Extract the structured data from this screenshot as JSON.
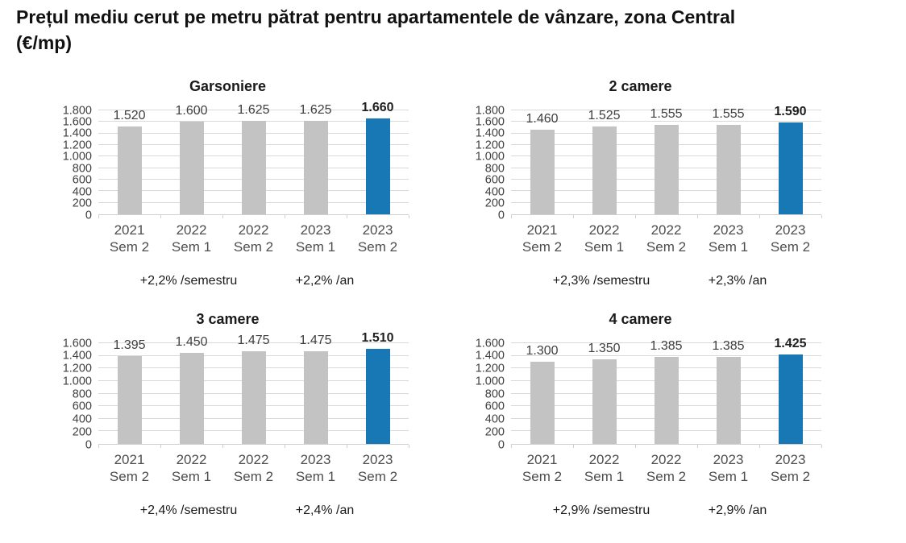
{
  "header": {
    "title_line1": "Prețul mediu cerut pe metru pătrat pentru apartamentele de vânzare, zona Central",
    "title_line2": "(€/mp)",
    "full_title": "Prețul mediu cerut pe metru pătrat pentru apartamentele de vânzare, zona Central (€/mp)"
  },
  "colors": {
    "bar": "#c3c3c3",
    "highlight_bar": "#1878b5",
    "gridline": "#d9d9d9",
    "axis_line": "#cfcfcf",
    "text_dark": "#1a1a1a",
    "text_gray": "#404040"
  },
  "chart_data": [
    {
      "type": "bar",
      "title": "Garsoniere",
      "categories": [
        [
          "2021",
          "Sem 2"
        ],
        [
          "2022",
          "Sem 1"
        ],
        [
          "2022",
          "Sem 2"
        ],
        [
          "2023",
          "Sem 1"
        ],
        [
          "2023",
          "Sem 2"
        ]
      ],
      "values": [
        1520,
        1600,
        1625,
        1625,
        1660
      ],
      "value_labels": [
        "1.520",
        "1.600",
        "1.625",
        "1.625",
        "1.660"
      ],
      "ylim": [
        0,
        1800
      ],
      "yticks": [
        "1.800",
        "1.600",
        "1.400",
        "1.200",
        "1.000",
        "800",
        "600",
        "400",
        "200",
        "0"
      ],
      "highlight_index": 4,
      "grid": true,
      "legend": "none",
      "annotations": [
        "+2,2% /semestru",
        "+2,2% /an"
      ]
    },
    {
      "type": "bar",
      "title": "2 camere",
      "categories": [
        [
          "2021",
          "Sem 2"
        ],
        [
          "2022",
          "Sem 1"
        ],
        [
          "2022",
          "Sem 2"
        ],
        [
          "2023",
          "Sem 1"
        ],
        [
          "2023",
          "Sem 2"
        ]
      ],
      "values": [
        1460,
        1525,
        1555,
        1555,
        1590
      ],
      "value_labels": [
        "1.460",
        "1.525",
        "1.555",
        "1.555",
        "1.590"
      ],
      "ylim": [
        0,
        1800
      ],
      "yticks": [
        "1.800",
        "1.600",
        "1.400",
        "1.200",
        "1.000",
        "800",
        "600",
        "400",
        "200",
        "0"
      ],
      "highlight_index": 4,
      "grid": true,
      "legend": "none",
      "annotations": [
        "+2,3% /semestru",
        "+2,3% /an"
      ]
    },
    {
      "type": "bar",
      "title": "3 camere",
      "categories": [
        [
          "2021",
          "Sem 2"
        ],
        [
          "2022",
          "Sem 1"
        ],
        [
          "2022",
          "Sem 2"
        ],
        [
          "2023",
          "Sem 1"
        ],
        [
          "2023",
          "Sem 2"
        ]
      ],
      "values": [
        1395,
        1450,
        1475,
        1475,
        1510
      ],
      "value_labels": [
        "1.395",
        "1.450",
        "1.475",
        "1.475",
        "1.510"
      ],
      "ylim": [
        0,
        1600
      ],
      "yticks": [
        "1.600",
        "1.400",
        "1.200",
        "1.000",
        "800",
        "600",
        "400",
        "200",
        "0"
      ],
      "highlight_index": 4,
      "grid": true,
      "legend": "none",
      "annotations": [
        "+2,4% /semestru",
        "+2,4% /an"
      ]
    },
    {
      "type": "bar",
      "title": "4 camere",
      "categories": [
        [
          "2021",
          "Sem 2"
        ],
        [
          "2022",
          "Sem 1"
        ],
        [
          "2022",
          "Sem 2"
        ],
        [
          "2023",
          "Sem 1"
        ],
        [
          "2023",
          "Sem 2"
        ]
      ],
      "values": [
        1300,
        1350,
        1385,
        1385,
        1425
      ],
      "value_labels": [
        "1.300",
        "1.350",
        "1.385",
        "1.385",
        "1.425"
      ],
      "ylim": [
        0,
        1600
      ],
      "yticks": [
        "1.600",
        "1.400",
        "1.200",
        "1.000",
        "800",
        "600",
        "400",
        "200",
        "0"
      ],
      "highlight_index": 4,
      "grid": true,
      "legend": "none",
      "annotations": [
        "+2,9% /semestru",
        "+2,9% /an"
      ]
    }
  ]
}
